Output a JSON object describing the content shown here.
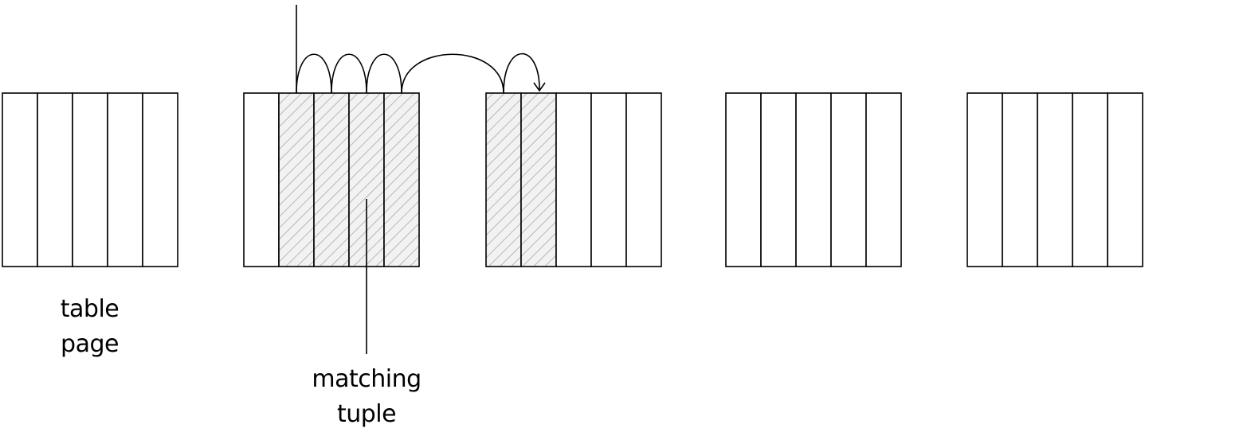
{
  "labels": {
    "table_page_line1": "table",
    "table_page_line2": "page",
    "matching_tuple_line1": "matching",
    "matching_tuple_line2": "tuple"
  },
  "pages": [
    {
      "tuples": 5,
      "matching": [
        false,
        false,
        false,
        false,
        false
      ]
    },
    {
      "tuples": 5,
      "matching": [
        false,
        true,
        true,
        true,
        true
      ]
    },
    {
      "tuples": 5,
      "matching": [
        true,
        true,
        false,
        false,
        false
      ]
    },
    {
      "tuples": 5,
      "matching": [
        false,
        false,
        false,
        false,
        false
      ]
    },
    {
      "tuples": 5,
      "matching": [
        false,
        false,
        false,
        false,
        false
      ]
    }
  ],
  "colors": {
    "stroke": "#000000",
    "hatch": "#b0b0b0",
    "hatch_fill": "#f2f2f2"
  }
}
